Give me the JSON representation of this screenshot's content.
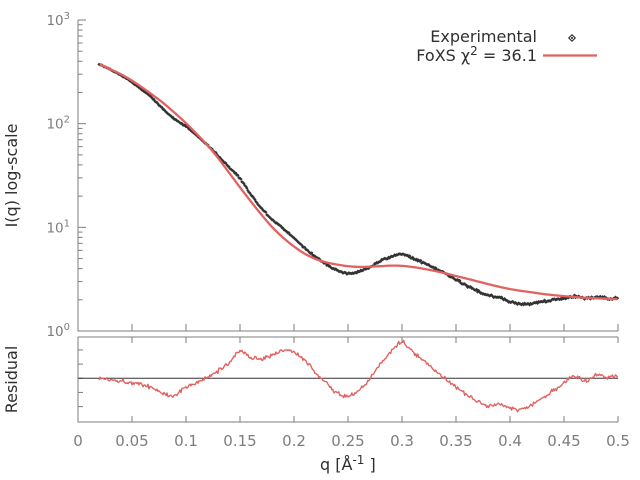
{
  "figure": {
    "background": "#ffffff"
  },
  "colors": {
    "experimental": "#333333",
    "fit": "#e26261",
    "axis": "#7d7d7d",
    "tick_label": "#7d7d7d",
    "label_text": "#2f2f2f",
    "centerline": "#333333"
  },
  "legend": {
    "entries": [
      {
        "label": "Experimental",
        "marker": "point"
      },
      {
        "label": "FoXS χ² = 36.1",
        "label_parts": {
          "pre": "FoXS χ",
          "sup": "2",
          "post": " = 36.1"
        },
        "marker": "line"
      }
    ]
  },
  "chart_data": {
    "type": "line",
    "title": "",
    "xlabel": "q [Å⁻¹]",
    "xlabel_parts": {
      "pre": "q [Å",
      "sup": "-1",
      "post": " ]"
    },
    "xlim": [
      0,
      0.5
    ],
    "xticks": [
      0,
      0.05,
      0.1,
      0.15,
      0.2,
      0.25,
      0.3,
      0.35,
      0.4,
      0.45,
      0.5
    ],
    "panels": [
      {
        "name": "profile",
        "ylabel": "I(q) log-scale",
        "yscale": "log",
        "ylim": [
          1,
          1000
        ],
        "ytick_exponents": [
          0,
          1,
          2,
          3
        ]
      },
      {
        "name": "residual",
        "ylabel": "Residual",
        "yscale": "linear",
        "ylim": [
          0.645,
          1.335
        ],
        "centerline": 1.0,
        "yticks": [
          0.77,
          0.885,
          1.0,
          1.115,
          1.23
        ]
      }
    ],
    "q": [
      0.02,
      0.03,
      0.04,
      0.05,
      0.06,
      0.07,
      0.08,
      0.09,
      0.1,
      0.11,
      0.12,
      0.13,
      0.14,
      0.15,
      0.16,
      0.17,
      0.18,
      0.19,
      0.2,
      0.21,
      0.22,
      0.23,
      0.24,
      0.25,
      0.26,
      0.27,
      0.28,
      0.29,
      0.3,
      0.31,
      0.32,
      0.33,
      0.34,
      0.35,
      0.36,
      0.37,
      0.38,
      0.39,
      0.4,
      0.41,
      0.42,
      0.43,
      0.44,
      0.45,
      0.46,
      0.47,
      0.48,
      0.49,
      0.5
    ],
    "series": [
      {
        "name": "Experimental",
        "panel": "profile",
        "style": "points",
        "color": "#333333",
        "values": [
          372,
          332,
          293,
          251,
          209,
          171,
          135,
          109,
          94.1,
          76.6,
          62,
          49,
          37.9,
          29.6,
          20.8,
          15.3,
          11.9,
          9.77,
          7.9,
          6.34,
          5.2,
          4.41,
          3.85,
          3.61,
          3.74,
          4.13,
          4.73,
          5.21,
          5.48,
          5.05,
          4.54,
          4.03,
          3.6,
          3.15,
          2.75,
          2.44,
          2.21,
          2.11,
          1.92,
          1.83,
          1.84,
          1.92,
          2.0,
          2.08,
          2.17,
          2.06,
          2.13,
          2.07,
          2.07
        ]
      },
      {
        "name": "FoXS fit",
        "panel": "profile",
        "style": "line",
        "color": "#e26261",
        "chi2": 36.1,
        "values": [
          371.5,
          335,
          298.5,
          260,
          221.3,
          186.2,
          155,
          125.9,
          101.2,
          79.4,
          61.7,
          46.2,
          33.5,
          24.3,
          17.8,
          13.2,
          10,
          7.94,
          6.53,
          5.56,
          4.95,
          4.59,
          4.37,
          4.22,
          4.15,
          4.17,
          4.22,
          4.27,
          4.25,
          4.14,
          3.98,
          3.8,
          3.6,
          3.39,
          3.2,
          3.01,
          2.83,
          2.67,
          2.54,
          2.44,
          2.36,
          2.28,
          2.22,
          2.17,
          2.13,
          2.09,
          2.07,
          2.05,
          2.03
        ]
      },
      {
        "name": "Residual (experimental / fit)",
        "panel": "residual",
        "style": "line",
        "color": "#e26261",
        "values": [
          1.0,
          0.99,
          0.98,
          0.965,
          0.945,
          0.92,
          0.87,
          0.865,
          0.93,
          0.965,
          1.005,
          1.06,
          1.13,
          1.22,
          1.17,
          1.16,
          1.19,
          1.23,
          1.21,
          1.14,
          1.05,
          0.96,
          0.88,
          0.855,
          0.9,
          0.99,
          1.12,
          1.22,
          1.29,
          1.22,
          1.14,
          1.06,
          1.0,
          0.93,
          0.86,
          0.81,
          0.78,
          0.79,
          0.755,
          0.75,
          0.78,
          0.84,
          0.9,
          0.96,
          1.02,
          0.985,
          1.03,
          1.01,
          1.02
        ]
      }
    ],
    "noise": {
      "seed": 1337,
      "experimental_rel_base": 0.013,
      "experimental_rel_slope": 0.05,
      "residual_abs": 0.022,
      "render_points": 520
    }
  }
}
